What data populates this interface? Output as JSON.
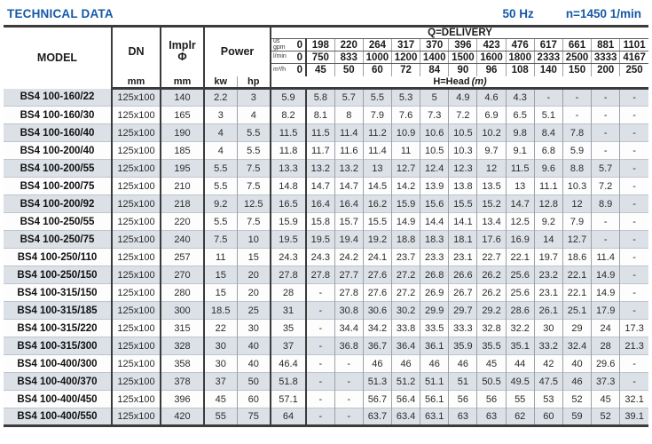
{
  "header": {
    "title": "TECHNICAL DATA",
    "frequency": "50 Hz",
    "speed": "n=1450 1/min"
  },
  "colors": {
    "accent_blue": "#1559a6",
    "row_shaded": "#dbe1e7",
    "row_plain": "#fdfdfe",
    "border_heavy": "#3b3b3b"
  },
  "table": {
    "headers": {
      "model": "MODEL",
      "dn": "DN",
      "dn_unit": "mm",
      "implr_line1": "Implr",
      "implr_line2": "Φ",
      "implr_unit": "mm",
      "power": "Power",
      "kw": "kw",
      "hp": "hp"
    },
    "delivery": {
      "label": "Q=DELIVERY",
      "head_label": "H=Head",
      "head_unit": "(m)",
      "rows": [
        {
          "unit_lines": [
            "us",
            "gpm"
          ],
          "zero": "0",
          "values": [
            "198",
            "220",
            "264",
            "317",
            "370",
            "396",
            "423",
            "476",
            "617",
            "661",
            "881",
            "1101"
          ]
        },
        {
          "unit_lines": [
            "l/min"
          ],
          "zero": "0",
          "values": [
            "750",
            "833",
            "1000",
            "1200",
            "1400",
            "1500",
            "1600",
            "1800",
            "2333",
            "2500",
            "3333",
            "4167"
          ]
        },
        {
          "unit_lines": [
            "m³/h"
          ],
          "zero": "0",
          "values": [
            "45",
            "50",
            "60",
            "72",
            "84",
            "90",
            "96",
            "108",
            "140",
            "150",
            "200",
            "250"
          ]
        }
      ]
    },
    "rows": [
      {
        "model": "BS4 100-160/22",
        "dn": "125x100",
        "implr": "140",
        "kw": "2.2",
        "hp": "3",
        "head": [
          "5.9",
          "5.8",
          "5.7",
          "5.5",
          "5.3",
          "5",
          "4.9",
          "4.6",
          "4.3",
          "-",
          "-",
          "-",
          "-"
        ]
      },
      {
        "model": "BS4 100-160/30",
        "dn": "125x100",
        "implr": "165",
        "kw": "3",
        "hp": "4",
        "head": [
          "8.2",
          "8.1",
          "8",
          "7.9",
          "7.6",
          "7.3",
          "7.2",
          "6.9",
          "6.5",
          "5.1",
          "-",
          "-",
          "-"
        ]
      },
      {
        "model": "BS4 100-160/40",
        "dn": "125x100",
        "implr": "190",
        "kw": "4",
        "hp": "5.5",
        "head": [
          "11.5",
          "11.5",
          "11.4",
          "11.2",
          "10.9",
          "10.6",
          "10.5",
          "10.2",
          "9.8",
          "8.4",
          "7.8",
          "-",
          "-"
        ]
      },
      {
        "model": "BS4 100-200/40",
        "dn": "125x100",
        "implr": "185",
        "kw": "4",
        "hp": "5.5",
        "head": [
          "11.8",
          "11.7",
          "11.6",
          "11.4",
          "11",
          "10.5",
          "10.3",
          "9.7",
          "9.1",
          "6.8",
          "5.9",
          "-",
          "-"
        ]
      },
      {
        "model": "BS4 100-200/55",
        "dn": "125x100",
        "implr": "195",
        "kw": "5.5",
        "hp": "7.5",
        "head": [
          "13.3",
          "13.2",
          "13.2",
          "13",
          "12.7",
          "12.4",
          "12.3",
          "12",
          "11.5",
          "9.6",
          "8.8",
          "5.7",
          "-"
        ]
      },
      {
        "model": "BS4 100-200/75",
        "dn": "125x100",
        "implr": "210",
        "kw": "5.5",
        "hp": "7.5",
        "head": [
          "14.8",
          "14.7",
          "14.7",
          "14.5",
          "14.2",
          "13.9",
          "13.8",
          "13.5",
          "13",
          "11.1",
          "10.3",
          "7.2",
          "-"
        ]
      },
      {
        "model": "BS4 100-200/92",
        "dn": "125x100",
        "implr": "218",
        "kw": "9.2",
        "hp": "12.5",
        "head": [
          "16.5",
          "16.4",
          "16.4",
          "16.2",
          "15.9",
          "15.6",
          "15.5",
          "15.2",
          "14.7",
          "12.8",
          "12",
          "8.9",
          "-"
        ]
      },
      {
        "model": "BS4 100-250/55",
        "dn": "125x100",
        "implr": "220",
        "kw": "5.5",
        "hp": "7.5",
        "head": [
          "15.9",
          "15.8",
          "15.7",
          "15.5",
          "14.9",
          "14.4",
          "14.1",
          "13.4",
          "12.5",
          "9.2",
          "7.9",
          "-",
          "-"
        ]
      },
      {
        "model": "BS4 100-250/75",
        "dn": "125x100",
        "implr": "240",
        "kw": "7.5",
        "hp": "10",
        "head": [
          "19.5",
          "19.5",
          "19.4",
          "19.2",
          "18.8",
          "18.3",
          "18.1",
          "17.6",
          "16.9",
          "14",
          "12.7",
          "-",
          "-"
        ]
      },
      {
        "model": "BS4 100-250/110",
        "dn": "125x100",
        "implr": "257",
        "kw": "11",
        "hp": "15",
        "head": [
          "24.3",
          "24.3",
          "24.2",
          "24.1",
          "23.7",
          "23.3",
          "23.1",
          "22.7",
          "22.1",
          "19.7",
          "18.6",
          "11.4",
          "-"
        ]
      },
      {
        "model": "BS4 100-250/150",
        "dn": "125x100",
        "implr": "270",
        "kw": "15",
        "hp": "20",
        "head": [
          "27.8",
          "27.8",
          "27.7",
          "27.6",
          "27.2",
          "26.8",
          "26.6",
          "26.2",
          "25.6",
          "23.2",
          "22.1",
          "14.9",
          "-"
        ]
      },
      {
        "model": "BS4 100-315/150",
        "dn": "125x100",
        "implr": "280",
        "kw": "15",
        "hp": "20",
        "head": [
          "28",
          "-",
          "27.8",
          "27.6",
          "27.2",
          "26.9",
          "26.7",
          "26.2",
          "25.6",
          "23.1",
          "22.1",
          "14.9",
          "-"
        ]
      },
      {
        "model": "BS4 100-315/185",
        "dn": "125x100",
        "implr": "300",
        "kw": "18.5",
        "hp": "25",
        "head": [
          "31",
          "-",
          "30.8",
          "30.6",
          "30.2",
          "29.9",
          "29.7",
          "29.2",
          "28.6",
          "26.1",
          "25.1",
          "17.9",
          "-"
        ]
      },
      {
        "model": "BS4 100-315/220",
        "dn": "125x100",
        "implr": "315",
        "kw": "22",
        "hp": "30",
        "head": [
          "35",
          "-",
          "34.4",
          "34.2",
          "33.8",
          "33.5",
          "33.3",
          "32.8",
          "32.2",
          "30",
          "29",
          "24",
          "17.3"
        ]
      },
      {
        "model": "BS4 100-315/300",
        "dn": "125x100",
        "implr": "328",
        "kw": "30",
        "hp": "40",
        "head": [
          "37",
          "-",
          "36.8",
          "36.7",
          "36.4",
          "36.1",
          "35.9",
          "35.5",
          "35.1",
          "33.2",
          "32.4",
          "28",
          "21.3"
        ]
      },
      {
        "model": "BS4 100-400/300",
        "dn": "125x100",
        "implr": "358",
        "kw": "30",
        "hp": "40",
        "head": [
          "46.4",
          "-",
          "-",
          "46",
          "46",
          "46",
          "46",
          "45",
          "44",
          "42",
          "40",
          "29.6",
          "-"
        ]
      },
      {
        "model": "BS4 100-400/370",
        "dn": "125x100",
        "implr": "378",
        "kw": "37",
        "hp": "50",
        "head": [
          "51.8",
          "-",
          "-",
          "51.3",
          "51.2",
          "51.1",
          "51",
          "50.5",
          "49.5",
          "47.5",
          "46",
          "37.3",
          "-"
        ]
      },
      {
        "model": "BS4 100-400/450",
        "dn": "125x100",
        "implr": "396",
        "kw": "45",
        "hp": "60",
        "head": [
          "57.1",
          "-",
          "-",
          "56.7",
          "56.4",
          "56.1",
          "56",
          "56",
          "55",
          "53",
          "52",
          "45",
          "32.1"
        ]
      },
      {
        "model": "BS4 100-400/550",
        "dn": "125x100",
        "implr": "420",
        "kw": "55",
        "hp": "75",
        "head": [
          "64",
          "-",
          "-",
          "63.7",
          "63.4",
          "63.1",
          "63",
          "63",
          "62",
          "60",
          "59",
          "52",
          "39.1"
        ]
      }
    ]
  }
}
